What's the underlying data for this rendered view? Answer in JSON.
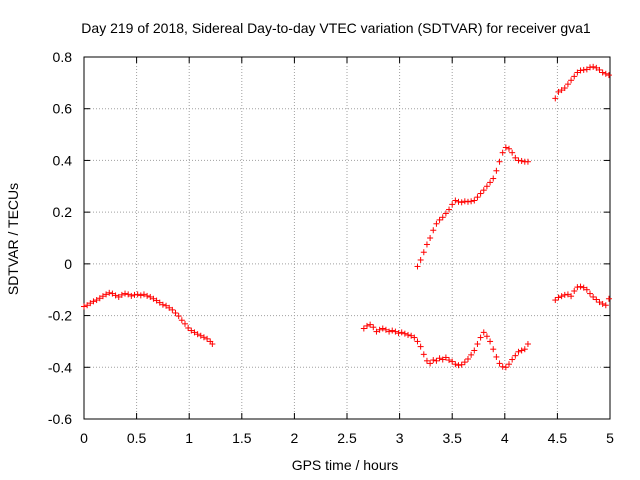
{
  "chart_data": {
    "type": "scatter",
    "title": "Day 219 of 2018, Sidereal Day-to-day VTEC variation (SDTVAR) for receiver gva1",
    "xlabel": "GPS time / hours",
    "ylabel": "SDTVAR / TECUs",
    "xlim": [
      0,
      5
    ],
    "ylim": [
      -0.6,
      0.8
    ],
    "xticks": [
      "0",
      "0.5",
      "1",
      "1.5",
      "2",
      "2.5",
      "3",
      "3.5",
      "4",
      "4.5",
      "5"
    ],
    "yticks": [
      "-0.6",
      "-0.4",
      "-0.2",
      "0",
      "0.2",
      "0.4",
      "0.6",
      "0.8"
    ],
    "xtick_values": [
      0,
      0.5,
      1,
      1.5,
      2,
      2.5,
      3,
      3.5,
      4,
      4.5,
      5
    ],
    "ytick_values": [
      -0.6,
      -0.4,
      -0.2,
      0,
      0.2,
      0.4,
      0.6,
      0.8
    ],
    "grid": true,
    "marker": "+",
    "color": "#ff0000",
    "series": [
      {
        "name": "segment-1",
        "points": [
          [
            0.0,
            -0.165
          ],
          [
            0.03,
            -0.16
          ],
          [
            0.06,
            -0.152
          ],
          [
            0.09,
            -0.145
          ],
          [
            0.12,
            -0.14
          ],
          [
            0.15,
            -0.133
          ],
          [
            0.18,
            -0.125
          ],
          [
            0.21,
            -0.118
          ],
          [
            0.24,
            -0.112
          ],
          [
            0.27,
            -0.115
          ],
          [
            0.3,
            -0.122
          ],
          [
            0.33,
            -0.128
          ],
          [
            0.36,
            -0.12
          ],
          [
            0.39,
            -0.115
          ],
          [
            0.42,
            -0.118
          ],
          [
            0.45,
            -0.124
          ],
          [
            0.48,
            -0.12
          ],
          [
            0.51,
            -0.118
          ],
          [
            0.54,
            -0.122
          ],
          [
            0.57,
            -0.118
          ],
          [
            0.6,
            -0.124
          ],
          [
            0.63,
            -0.128
          ],
          [
            0.66,
            -0.135
          ],
          [
            0.69,
            -0.142
          ],
          [
            0.72,
            -0.15
          ],
          [
            0.75,
            -0.158
          ],
          [
            0.78,
            -0.162
          ],
          [
            0.81,
            -0.17
          ],
          [
            0.84,
            -0.178
          ],
          [
            0.87,
            -0.19
          ],
          [
            0.9,
            -0.202
          ],
          [
            0.93,
            -0.218
          ],
          [
            0.96,
            -0.232
          ],
          [
            0.99,
            -0.248
          ],
          [
            1.02,
            -0.258
          ],
          [
            1.05,
            -0.265
          ],
          [
            1.08,
            -0.272
          ],
          [
            1.11,
            -0.278
          ],
          [
            1.14,
            -0.284
          ],
          [
            1.17,
            -0.29
          ],
          [
            1.2,
            -0.3
          ],
          [
            1.22,
            -0.31
          ]
        ]
      },
      {
        "name": "segment-2",
        "points": [
          [
            2.66,
            -0.25
          ],
          [
            2.69,
            -0.24
          ],
          [
            2.72,
            -0.235
          ],
          [
            2.75,
            -0.245
          ],
          [
            2.78,
            -0.262
          ],
          [
            2.81,
            -0.255
          ],
          [
            2.84,
            -0.25
          ],
          [
            2.87,
            -0.255
          ],
          [
            2.9,
            -0.262
          ],
          [
            2.93,
            -0.258
          ],
          [
            2.96,
            -0.262
          ],
          [
            2.99,
            -0.268
          ],
          [
            3.02,
            -0.265
          ],
          [
            3.05,
            -0.27
          ],
          [
            3.08,
            -0.275
          ],
          [
            3.11,
            -0.278
          ],
          [
            3.14,
            -0.285
          ],
          [
            3.17,
            -0.3
          ],
          [
            3.2,
            -0.32
          ],
          [
            3.23,
            -0.35
          ],
          [
            3.26,
            -0.375
          ],
          [
            3.29,
            -0.385
          ],
          [
            3.32,
            -0.372
          ],
          [
            3.35,
            -0.375
          ],
          [
            3.38,
            -0.365
          ],
          [
            3.41,
            -0.37
          ],
          [
            3.44,
            -0.362
          ],
          [
            3.47,
            -0.372
          ],
          [
            3.5,
            -0.378
          ],
          [
            3.53,
            -0.388
          ],
          [
            3.56,
            -0.392
          ],
          [
            3.59,
            -0.39
          ],
          [
            3.62,
            -0.38
          ],
          [
            3.65,
            -0.368
          ],
          [
            3.68,
            -0.352
          ],
          [
            3.71,
            -0.335
          ],
          [
            3.74,
            -0.31
          ],
          [
            3.77,
            -0.285
          ],
          [
            3.8,
            -0.265
          ],
          [
            3.83,
            -0.28
          ],
          [
            3.86,
            -0.3
          ],
          [
            3.89,
            -0.33
          ],
          [
            3.92,
            -0.36
          ],
          [
            3.95,
            -0.385
          ],
          [
            3.98,
            -0.398
          ],
          [
            4.01,
            -0.4
          ],
          [
            4.04,
            -0.388
          ],
          [
            4.07,
            -0.37
          ],
          [
            4.1,
            -0.355
          ],
          [
            4.13,
            -0.34
          ],
          [
            4.16,
            -0.335
          ],
          [
            4.19,
            -0.33
          ],
          [
            4.22,
            -0.31
          ]
        ]
      },
      {
        "name": "segment-3",
        "points": [
          [
            3.17,
            -0.01
          ],
          [
            3.2,
            0.015
          ],
          [
            3.23,
            0.045
          ],
          [
            3.26,
            0.075
          ],
          [
            3.29,
            0.1
          ],
          [
            3.32,
            0.13
          ],
          [
            3.35,
            0.155
          ],
          [
            3.38,
            0.17
          ],
          [
            3.41,
            0.18
          ],
          [
            3.44,
            0.195
          ],
          [
            3.47,
            0.21
          ],
          [
            3.5,
            0.23
          ],
          [
            3.53,
            0.245
          ],
          [
            3.56,
            0.24
          ],
          [
            3.59,
            0.238
          ],
          [
            3.62,
            0.242
          ],
          [
            3.65,
            0.24
          ],
          [
            3.68,
            0.242
          ],
          [
            3.71,
            0.245
          ],
          [
            3.74,
            0.258
          ],
          [
            3.77,
            0.272
          ],
          [
            3.8,
            0.285
          ],
          [
            3.83,
            0.3
          ],
          [
            3.86,
            0.315
          ],
          [
            3.89,
            0.33
          ],
          [
            3.92,
            0.36
          ],
          [
            3.95,
            0.395
          ],
          [
            3.98,
            0.43
          ],
          [
            4.01,
            0.45
          ],
          [
            4.04,
            0.445
          ],
          [
            4.07,
            0.43
          ],
          [
            4.1,
            0.41
          ],
          [
            4.13,
            0.4
          ],
          [
            4.16,
            0.398
          ],
          [
            4.19,
            0.395
          ],
          [
            4.22,
            0.395
          ]
        ]
      },
      {
        "name": "segment-4",
        "points": [
          [
            4.48,
            -0.14
          ],
          [
            4.51,
            -0.13
          ],
          [
            4.54,
            -0.125
          ],
          [
            4.57,
            -0.12
          ],
          [
            4.6,
            -0.118
          ],
          [
            4.63,
            -0.125
          ],
          [
            4.66,
            -0.105
          ],
          [
            4.69,
            -0.09
          ],
          [
            4.72,
            -0.088
          ],
          [
            4.75,
            -0.092
          ],
          [
            4.78,
            -0.1
          ],
          [
            4.81,
            -0.115
          ],
          [
            4.84,
            -0.128
          ],
          [
            4.87,
            -0.138
          ],
          [
            4.9,
            -0.148
          ],
          [
            4.93,
            -0.155
          ],
          [
            4.96,
            -0.16
          ],
          [
            4.99,
            -0.135
          ]
        ]
      },
      {
        "name": "segment-5",
        "points": [
          [
            4.48,
            0.64
          ],
          [
            4.51,
            0.665
          ],
          [
            4.54,
            0.672
          ],
          [
            4.57,
            0.68
          ],
          [
            4.6,
            0.695
          ],
          [
            4.63,
            0.71
          ],
          [
            4.66,
            0.725
          ],
          [
            4.69,
            0.74
          ],
          [
            4.72,
            0.748
          ],
          [
            4.75,
            0.75
          ],
          [
            4.78,
            0.752
          ],
          [
            4.81,
            0.76
          ],
          [
            4.84,
            0.762
          ],
          [
            4.87,
            0.758
          ],
          [
            4.9,
            0.75
          ],
          [
            4.93,
            0.74
          ],
          [
            4.96,
            0.735
          ],
          [
            4.99,
            0.73
          ]
        ]
      }
    ]
  }
}
